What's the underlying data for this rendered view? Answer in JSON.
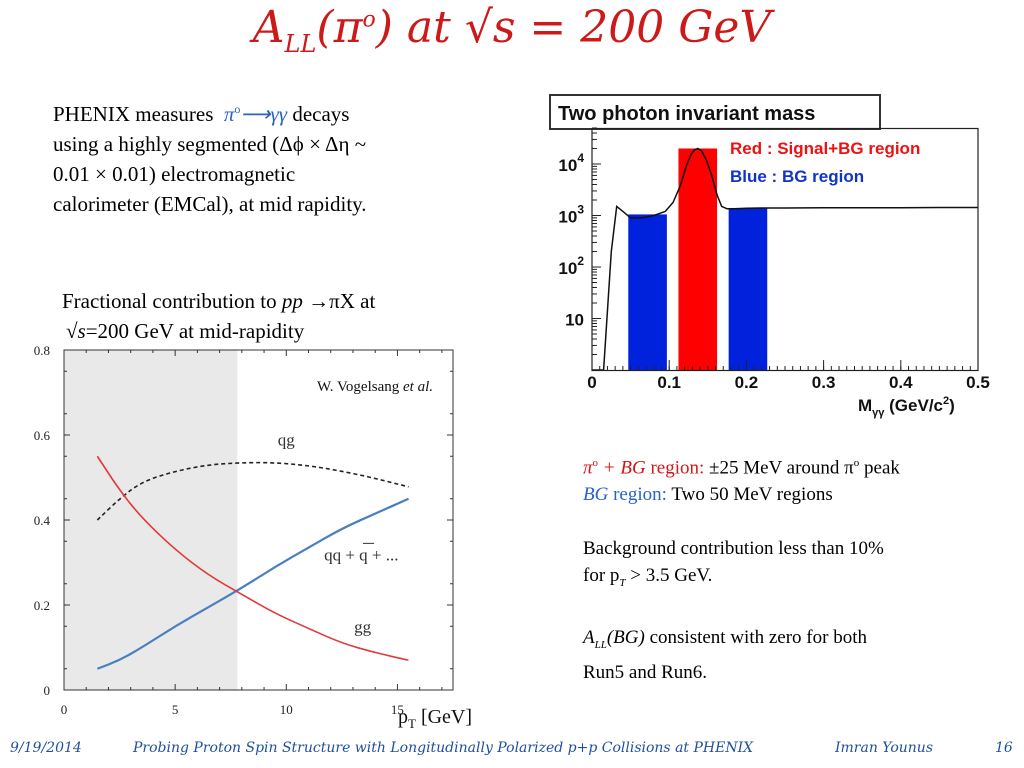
{
  "slide": {
    "title_main": "A",
    "title_sub": "LL",
    "title_rest": "(π",
    "title_sup": "o",
    "title_end": ") at √s = 200 GeV"
  },
  "left_text": {
    "line1_a": "PHENIX measures",
    "line1_b": "π",
    "line1_b_sup": "o",
    "line1_c": "⟶γγ",
    "line1_d": "decays",
    "line2": "using a highly segmented (Δϕ × Δη ~",
    "line3": "0.01 × 0.01) electromagnetic",
    "line4": "calorimeter (EMCal), at mid rapidity."
  },
  "caption": {
    "line1_a": "Fractional contribution to",
    "line1_b": "pp",
    "line1_c": "→πX",
    "line1_d": "at",
    "line2_a": "√s",
    "line2_b": "=200 GeV at mid-rapidity"
  },
  "right_text": {
    "r1_label_a": "π",
    "r1_label_sup": "o",
    "r1_label_b": " + BG",
    "r1_label_c": " region:",
    "r1_value": "±25 MeV around π",
    "r1_value_sup": "o",
    "r1_value_end": " peak",
    "r2_label_a": "BG",
    "r2_label_b": " region:",
    "r2_value": "Two 50 MeV regions",
    "bg_line1": "Background contribution less than 10%",
    "bg_line2_a": "for p",
    "bg_line2_sub": "T",
    "bg_line2_b": " > 3.5 GeV.",
    "all_line1_a": "A",
    "all_line1_sub": "LL",
    "all_line1_b": "(BG)",
    "all_line1_c": " consistent with zero for both",
    "all_line2": "Run5 and Run6."
  },
  "footer": {
    "date": "9/19/2014",
    "talk": "Probing Proton Spin Structure with Longitudinally Polarized p+p Collisions at PHENIX",
    "author": "Imran Younus",
    "page": "16"
  },
  "colors": {
    "title": "#cc1a1a",
    "signal_region": "#ff0000",
    "bg_region": "#0022dd",
    "gg_curve": "#e03a3a",
    "qq_curve": "#4a7fbf",
    "shade": "#e9e9e9",
    "footer": "#1f4f9e"
  },
  "chart_data": [
    {
      "type": "line",
      "title": "",
      "xlabel": "p",
      "xlabel_sub": "T",
      "xlabel_unit": " [GeV]",
      "ylabel": "",
      "xlim": [
        0,
        17.5
      ],
      "ylim": [
        0,
        0.8
      ],
      "x_ticks": [
        0,
        5,
        10,
        15
      ],
      "y_ticks": [
        0,
        0.2,
        0.4,
        0.6,
        0.8
      ],
      "shaded_region": [
        0,
        7.8
      ],
      "annotation_a": "W. Vogelsang ",
      "annotation_b": "et al.",
      "series": [
        {
          "name": "qg",
          "style": "dashed",
          "color": "#222222",
          "x": [
            1.5,
            2.5,
            3.5,
            5,
            6.5,
            8,
            9.5,
            11,
            12.5,
            14,
            15.5
          ],
          "y": [
            0.4,
            0.45,
            0.49,
            0.515,
            0.53,
            0.535,
            0.535,
            0.528,
            0.515,
            0.498,
            0.478
          ]
        },
        {
          "name": "qq + qq̄ + ...",
          "style": "solid",
          "color": "#4a7fbf",
          "x": [
            1.5,
            2.5,
            3.5,
            5,
            6.5,
            8,
            9.5,
            11,
            12.5,
            14,
            15.5
          ],
          "y": [
            0.05,
            0.07,
            0.1,
            0.15,
            0.195,
            0.24,
            0.29,
            0.335,
            0.38,
            0.415,
            0.45
          ]
        },
        {
          "name": "gg",
          "style": "solid",
          "color": "#e03a3a",
          "x": [
            1.5,
            2.5,
            3.5,
            5,
            6.5,
            8,
            9.5,
            11,
            12.5,
            14,
            15.5
          ],
          "y": [
            0.55,
            0.47,
            0.405,
            0.33,
            0.27,
            0.225,
            0.18,
            0.145,
            0.11,
            0.088,
            0.07
          ]
        }
      ],
      "labels": {
        "qg": "qg",
        "qq_a": "qq + q",
        "qq_bar": "q",
        "qq_b": " + ...",
        "gg": "gg"
      }
    },
    {
      "type": "area",
      "title": "Two photon invariant mass",
      "xlabel": "M",
      "xlabel_sub": "γγ",
      "xlabel_unit": " (GeV/c",
      "xlabel_sup": "2",
      "xlabel_end": ")",
      "xlim": [
        0,
        0.5
      ],
      "ylim_log": [
        1,
        50000
      ],
      "log_y": true,
      "x_tick_labels": [
        "0",
        "0.1",
        "0.2",
        "0.3",
        "0.4",
        "0.5"
      ],
      "y_tick_labels": [
        {
          "value": 10,
          "base": "10",
          "exp": ""
        },
        {
          "value": 100,
          "base": "10",
          "exp": "2"
        },
        {
          "value": 1000,
          "base": "10",
          "exp": "3"
        },
        {
          "value": 10000,
          "base": "10",
          "exp": "4"
        }
      ],
      "legend": {
        "red": "Red  : Signal+BG region",
        "blue": "Blue : BG region"
      },
      "regions": [
        {
          "kind": "bg",
          "x0": 0.047,
          "x1": 0.097,
          "top": 1050
        },
        {
          "kind": "signal",
          "x0": 0.112,
          "x1": 0.162,
          "top": 20000
        },
        {
          "kind": "bg",
          "x0": 0.177,
          "x1": 0.227,
          "top": 1400
        }
      ],
      "spectrum": {
        "x": [
          0.0,
          0.015,
          0.025,
          0.032,
          0.04,
          0.05,
          0.065,
          0.08,
          0.095,
          0.105,
          0.115,
          0.122,
          0.128,
          0.133,
          0.137,
          0.142,
          0.148,
          0.155,
          0.162,
          0.168,
          0.175,
          0.185,
          0.2,
          0.22,
          0.25,
          0.3,
          0.35,
          0.4,
          0.45,
          0.5
        ],
        "y": [
          1,
          1,
          200,
          1500,
          1200,
          900,
          900,
          1000,
          1200,
          1800,
          4000,
          9000,
          15000,
          19000,
          20000,
          18000,
          12000,
          6000,
          2500,
          1500,
          1350,
          1350,
          1380,
          1400,
          1400,
          1420,
          1420,
          1420,
          1430,
          1430
        ]
      }
    }
  ]
}
